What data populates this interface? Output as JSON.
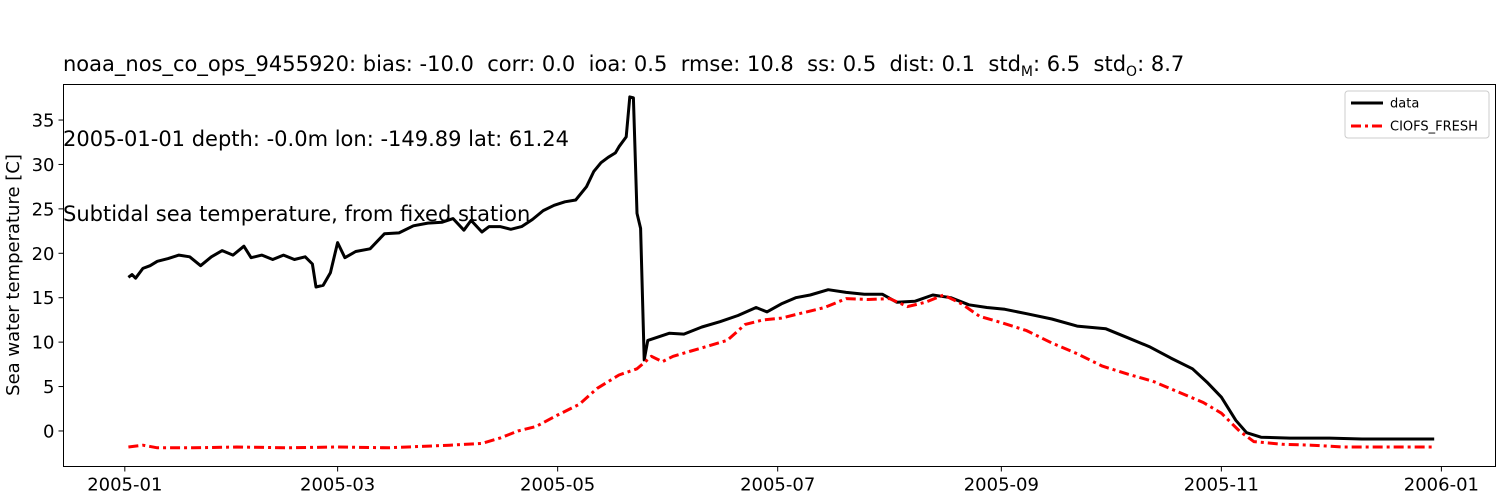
{
  "header": {
    "station": "noaa_nos_co_ops_9455920",
    "stats": [
      {
        "label": "bias",
        "value": "-10.0"
      },
      {
        "label": "corr",
        "value": "0.0"
      },
      {
        "label": "ioa",
        "value": "0.5"
      },
      {
        "label": "rmse",
        "value": "10.8"
      },
      {
        "label": "ss",
        "value": "0.5"
      },
      {
        "label": "dist",
        "value": "0.1"
      }
    ],
    "std_m_base": "std",
    "std_m_sub": "M",
    "std_m_value": "6.5",
    "std_o_base": "std",
    "std_o_sub": "O",
    "std_o_value": "8.7",
    "line2": "2005-01-01 depth: -0.0m lon: -149.89 lat: 61.24",
    "line3": "Subtidal sea temperature, from fixed station"
  },
  "chart_data": {
    "type": "line",
    "ylabel": "Sea water temperature [C]",
    "xlabel": "",
    "xlim": [
      "2004-12-15",
      "2006-01-16"
    ],
    "ylim": [
      -4,
      39
    ],
    "x_ticks": [
      "2005-01",
      "2005-03",
      "2005-05",
      "2005-07",
      "2005-09",
      "2005-11",
      "2006-01"
    ],
    "y_ticks": [
      0,
      5,
      10,
      15,
      20,
      25,
      30,
      35
    ],
    "legend_position": "top-right",
    "series": [
      {
        "name": "data",
        "color": "#000000",
        "style": "solid",
        "points": [
          [
            "2005-01-02",
            17.3
          ],
          [
            "2005-01-03",
            17.6
          ],
          [
            "2005-01-04",
            17.2
          ],
          [
            "2005-01-06",
            18.3
          ],
          [
            "2005-01-08",
            18.6
          ],
          [
            "2005-01-10",
            19.1
          ],
          [
            "2005-01-13",
            19.4
          ],
          [
            "2005-01-16",
            19.8
          ],
          [
            "2005-01-19",
            19.6
          ],
          [
            "2005-01-22",
            18.6
          ],
          [
            "2005-01-25",
            19.6
          ],
          [
            "2005-01-28",
            20.3
          ],
          [
            "2005-01-31",
            19.8
          ],
          [
            "2005-02-03",
            20.8
          ],
          [
            "2005-02-05",
            19.5
          ],
          [
            "2005-02-08",
            19.8
          ],
          [
            "2005-02-11",
            19.3
          ],
          [
            "2005-02-14",
            19.8
          ],
          [
            "2005-02-17",
            19.3
          ],
          [
            "2005-02-20",
            19.6
          ],
          [
            "2005-02-22",
            18.8
          ],
          [
            "2005-02-23",
            16.2
          ],
          [
            "2005-02-25",
            16.4
          ],
          [
            "2005-02-27",
            17.8
          ],
          [
            "2005-03-01",
            21.2
          ],
          [
            "2005-03-03",
            19.5
          ],
          [
            "2005-03-06",
            20.2
          ],
          [
            "2005-03-10",
            20.5
          ],
          [
            "2005-03-14",
            22.2
          ],
          [
            "2005-03-18",
            22.3
          ],
          [
            "2005-03-22",
            23.1
          ],
          [
            "2005-03-26",
            23.4
          ],
          [
            "2005-03-30",
            23.5
          ],
          [
            "2005-04-02",
            23.9
          ],
          [
            "2005-04-05",
            22.6
          ],
          [
            "2005-04-07",
            23.7
          ],
          [
            "2005-04-10",
            22.4
          ],
          [
            "2005-04-12",
            23.0
          ],
          [
            "2005-04-15",
            23.0
          ],
          [
            "2005-04-18",
            22.7
          ],
          [
            "2005-04-21",
            23.0
          ],
          [
            "2005-04-24",
            23.8
          ],
          [
            "2005-04-27",
            24.8
          ],
          [
            "2005-04-30",
            25.4
          ],
          [
            "2005-05-03",
            25.8
          ],
          [
            "2005-05-06",
            26.0
          ],
          [
            "2005-05-09",
            27.5
          ],
          [
            "2005-05-11",
            29.2
          ],
          [
            "2005-05-13",
            30.2
          ],
          [
            "2005-05-15",
            30.8
          ],
          [
            "2005-05-17",
            31.3
          ],
          [
            "2005-05-18",
            32.0
          ],
          [
            "2005-05-20",
            33.1
          ],
          [
            "2005-05-21",
            37.6
          ],
          [
            "2005-05-22",
            37.5
          ],
          [
            "2005-05-23",
            24.5
          ],
          [
            "2005-05-24",
            22.8
          ],
          [
            "2005-05-25",
            8.0
          ],
          [
            "2005-05-26",
            10.2
          ],
          [
            "2005-05-29",
            10.6
          ],
          [
            "2005-06-01",
            11.0
          ],
          [
            "2005-06-05",
            10.9
          ],
          [
            "2005-06-10",
            11.7
          ],
          [
            "2005-06-15",
            12.3
          ],
          [
            "2005-06-20",
            13.0
          ],
          [
            "2005-06-25",
            13.9
          ],
          [
            "2005-06-28",
            13.4
          ],
          [
            "2005-07-02",
            14.3
          ],
          [
            "2005-07-06",
            15.0
          ],
          [
            "2005-07-10",
            15.3
          ],
          [
            "2005-07-15",
            15.9
          ],
          [
            "2005-07-20",
            15.6
          ],
          [
            "2005-07-25",
            15.4
          ],
          [
            "2005-07-30",
            15.4
          ],
          [
            "2005-08-03",
            14.5
          ],
          [
            "2005-08-08",
            14.6
          ],
          [
            "2005-08-13",
            15.3
          ],
          [
            "2005-08-18",
            15.0
          ],
          [
            "2005-08-23",
            14.2
          ],
          [
            "2005-08-28",
            13.9
          ],
          [
            "2005-09-02",
            13.7
          ],
          [
            "2005-09-08",
            13.2
          ],
          [
            "2005-09-15",
            12.6
          ],
          [
            "2005-09-22",
            11.8
          ],
          [
            "2005-09-30",
            11.5
          ],
          [
            "2005-10-06",
            10.5
          ],
          [
            "2005-10-12",
            9.5
          ],
          [
            "2005-10-18",
            8.2
          ],
          [
            "2005-10-24",
            7.0
          ],
          [
            "2005-10-28",
            5.5
          ],
          [
            "2005-11-01",
            3.8
          ],
          [
            "2005-11-05",
            1.2
          ],
          [
            "2005-11-08",
            -0.2
          ],
          [
            "2005-11-12",
            -0.7
          ],
          [
            "2005-11-20",
            -0.8
          ],
          [
            "2005-12-01",
            -0.8
          ],
          [
            "2005-12-10",
            -0.9
          ],
          [
            "2005-12-20",
            -0.9
          ],
          [
            "2005-12-30",
            -0.9
          ]
        ]
      },
      {
        "name": "CIOFS_FRESH",
        "color": "#ff0000",
        "style": "dashdot",
        "points": [
          [
            "2005-01-02",
            -1.8
          ],
          [
            "2005-01-06",
            -1.6
          ],
          [
            "2005-01-10",
            -1.9
          ],
          [
            "2005-01-20",
            -1.9
          ],
          [
            "2005-02-01",
            -1.8
          ],
          [
            "2005-02-15",
            -1.9
          ],
          [
            "2005-03-01",
            -1.8
          ],
          [
            "2005-03-15",
            -1.9
          ],
          [
            "2005-04-01",
            -1.6
          ],
          [
            "2005-04-10",
            -1.4
          ],
          [
            "2005-04-15",
            -0.8
          ],
          [
            "2005-04-20",
            0.0
          ],
          [
            "2005-04-25",
            0.5
          ],
          [
            "2005-05-01",
            1.8
          ],
          [
            "2005-05-07",
            3.0
          ],
          [
            "2005-05-12",
            4.8
          ],
          [
            "2005-05-18",
            6.3
          ],
          [
            "2005-05-23",
            7.0
          ],
          [
            "2005-05-25",
            7.7
          ],
          [
            "2005-05-27",
            8.4
          ],
          [
            "2005-05-30",
            7.8
          ],
          [
            "2005-06-02",
            8.4
          ],
          [
            "2005-06-07",
            9.0
          ],
          [
            "2005-06-12",
            9.6
          ],
          [
            "2005-06-17",
            10.2
          ],
          [
            "2005-06-22",
            12.0
          ],
          [
            "2005-06-27",
            12.5
          ],
          [
            "2005-07-02",
            12.7
          ],
          [
            "2005-07-08",
            13.3
          ],
          [
            "2005-07-14",
            13.9
          ],
          [
            "2005-07-20",
            14.9
          ],
          [
            "2005-07-26",
            14.8
          ],
          [
            "2005-08-01",
            14.9
          ],
          [
            "2005-08-06",
            14.0
          ],
          [
            "2005-08-11",
            14.5
          ],
          [
            "2005-08-16",
            15.3
          ],
          [
            "2005-08-21",
            14.3
          ],
          [
            "2005-08-26",
            12.9
          ],
          [
            "2005-09-01",
            12.2
          ],
          [
            "2005-09-08",
            11.3
          ],
          [
            "2005-09-15",
            9.9
          ],
          [
            "2005-09-22",
            8.7
          ],
          [
            "2005-09-29",
            7.3
          ],
          [
            "2005-10-06",
            6.4
          ],
          [
            "2005-10-13",
            5.6
          ],
          [
            "2005-10-20",
            4.4
          ],
          [
            "2005-10-27",
            3.2
          ],
          [
            "2005-11-01",
            2.0
          ],
          [
            "2005-11-06",
            0.0
          ],
          [
            "2005-11-10",
            -1.2
          ],
          [
            "2005-11-18",
            -1.5
          ],
          [
            "2005-11-26",
            -1.6
          ],
          [
            "2005-12-05",
            -1.8
          ],
          [
            "2005-12-15",
            -1.8
          ],
          [
            "2005-12-30",
            -1.8
          ]
        ]
      }
    ]
  }
}
